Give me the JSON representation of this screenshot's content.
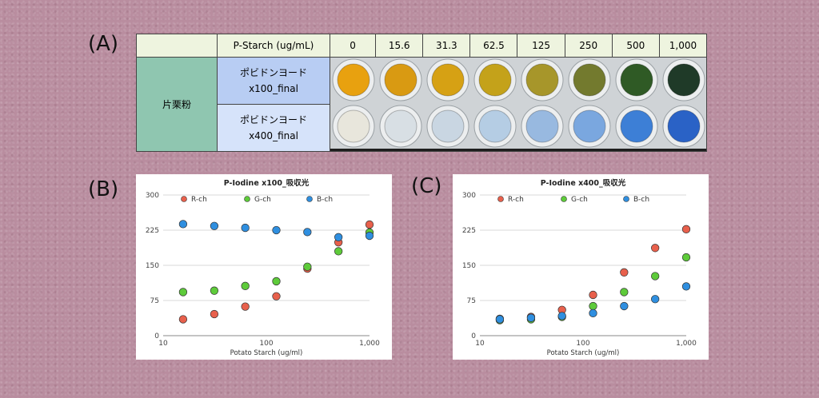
{
  "labels": {
    "a": "(A)",
    "b": "(B)",
    "c": "(C)"
  },
  "table": {
    "row_header_label": "P-Starch (ug/mL)",
    "concentrations": [
      "0",
      "15.6",
      "31.3",
      "62.5",
      "125",
      "250",
      "500",
      "1,000"
    ],
    "sample_name": "片栗粉",
    "rows": [
      {
        "line1": "ポビドンヨード",
        "line2": "x100_final"
      },
      {
        "line1": "ポビドンヨード",
        "line2": "x400_final"
      }
    ]
  },
  "well_colors": {
    "x100": [
      "#e8a10f",
      "#d99a12",
      "#d6a114",
      "#c4a21a",
      "#a7962a",
      "#737a2e",
      "#2f5a25",
      "#1f3a28"
    ],
    "x400": [
      "#e8e6dc",
      "#d8dfe4",
      "#c9d6e2",
      "#b5cde4",
      "#98b9e0",
      "#7aa7df",
      "#3d7fd6",
      "#2a62c6"
    ]
  },
  "colors": {
    "r": "#e8604c",
    "g": "#5ecb3a",
    "b": "#2f8fe0"
  },
  "chart_data": [
    {
      "type": "scatter",
      "title": "P-Iodine x100_吸収光",
      "xlabel": "Potato Starch (ug/ml)",
      "ylabel": "",
      "x_scale": "log",
      "xlim": [
        10,
        1000
      ],
      "ylim": [
        0,
        300
      ],
      "yticks": [
        0,
        75,
        150,
        225,
        300
      ],
      "xticks": [
        {
          "v": 10,
          "label": "10"
        },
        {
          "v": 100,
          "label": "100"
        },
        {
          "v": 1000,
          "label": "1,000"
        }
      ],
      "grid": true,
      "legend": "top",
      "x": [
        15.6,
        31.3,
        62.5,
        125,
        250,
        500,
        1000
      ],
      "series": [
        {
          "name": "R-ch",
          "values": [
            35,
            46,
            62,
            84,
            143,
            199,
            237
          ]
        },
        {
          "name": "G-ch",
          "values": [
            93,
            96,
            106,
            116,
            147,
            180,
            220
          ]
        },
        {
          "name": "B-ch",
          "values": [
            238,
            234,
            230,
            225,
            221,
            210,
            213
          ]
        }
      ]
    },
    {
      "type": "scatter",
      "title": "P-Iodine x400_吸収光",
      "xlabel": "Potato Starch (ug/ml)",
      "ylabel": "",
      "x_scale": "log",
      "xlim": [
        10,
        1000
      ],
      "ylim": [
        0,
        300
      ],
      "yticks": [
        0,
        75,
        150,
        225,
        300
      ],
      "xticks": [
        {
          "v": 10,
          "label": "10"
        },
        {
          "v": 100,
          "label": "100"
        },
        {
          "v": 1000,
          "label": "1,000"
        }
      ],
      "grid": true,
      "legend": "top",
      "x": [
        15.6,
        31.3,
        62.5,
        125,
        250,
        500,
        1000
      ],
      "series": [
        {
          "name": "R-ch",
          "values": [
            36,
            40,
            55,
            87,
            135,
            187,
            227
          ]
        },
        {
          "name": "G-ch",
          "values": [
            33,
            35,
            40,
            63,
            93,
            127,
            167
          ]
        },
        {
          "name": "B-ch",
          "values": [
            35,
            38,
            42,
            48,
            63,
            78,
            105
          ]
        }
      ]
    }
  ]
}
